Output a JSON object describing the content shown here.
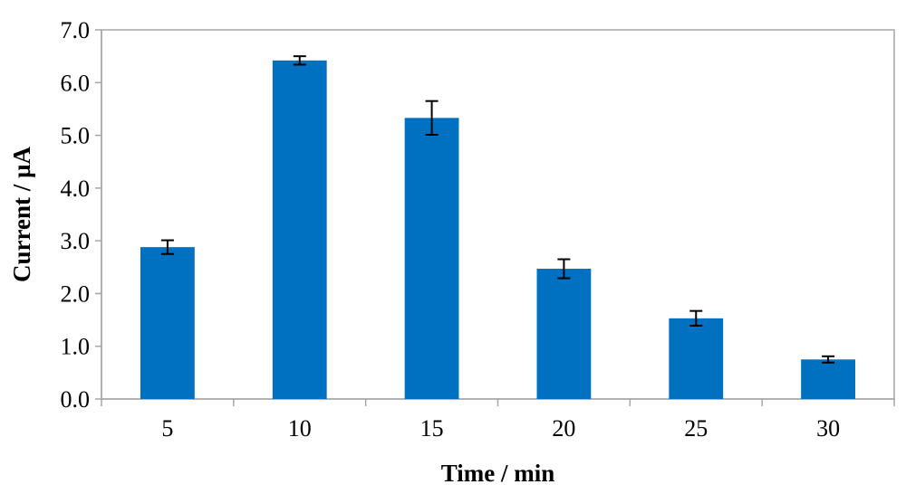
{
  "chart_data": {
    "type": "bar",
    "title": "",
    "xlabel": "Time / min",
    "ylabel": "Current / µA",
    "categories": [
      "5",
      "10",
      "15",
      "20",
      "25",
      "30"
    ],
    "series": [
      {
        "values": [
          2.88,
          6.42,
          5.33,
          2.47,
          1.53,
          0.75
        ],
        "errors": [
          0.13,
          0.08,
          0.32,
          0.18,
          0.14,
          0.06
        ],
        "color": "#0070C0"
      }
    ],
    "ylim": [
      0,
      7
    ],
    "yticks": [
      "0.0",
      "1.0",
      "2.0",
      "3.0",
      "4.0",
      "5.0",
      "6.0",
      "7.0"
    ],
    "grid": false,
    "legend": "none",
    "plot_border_color": "#A6A6A6"
  }
}
